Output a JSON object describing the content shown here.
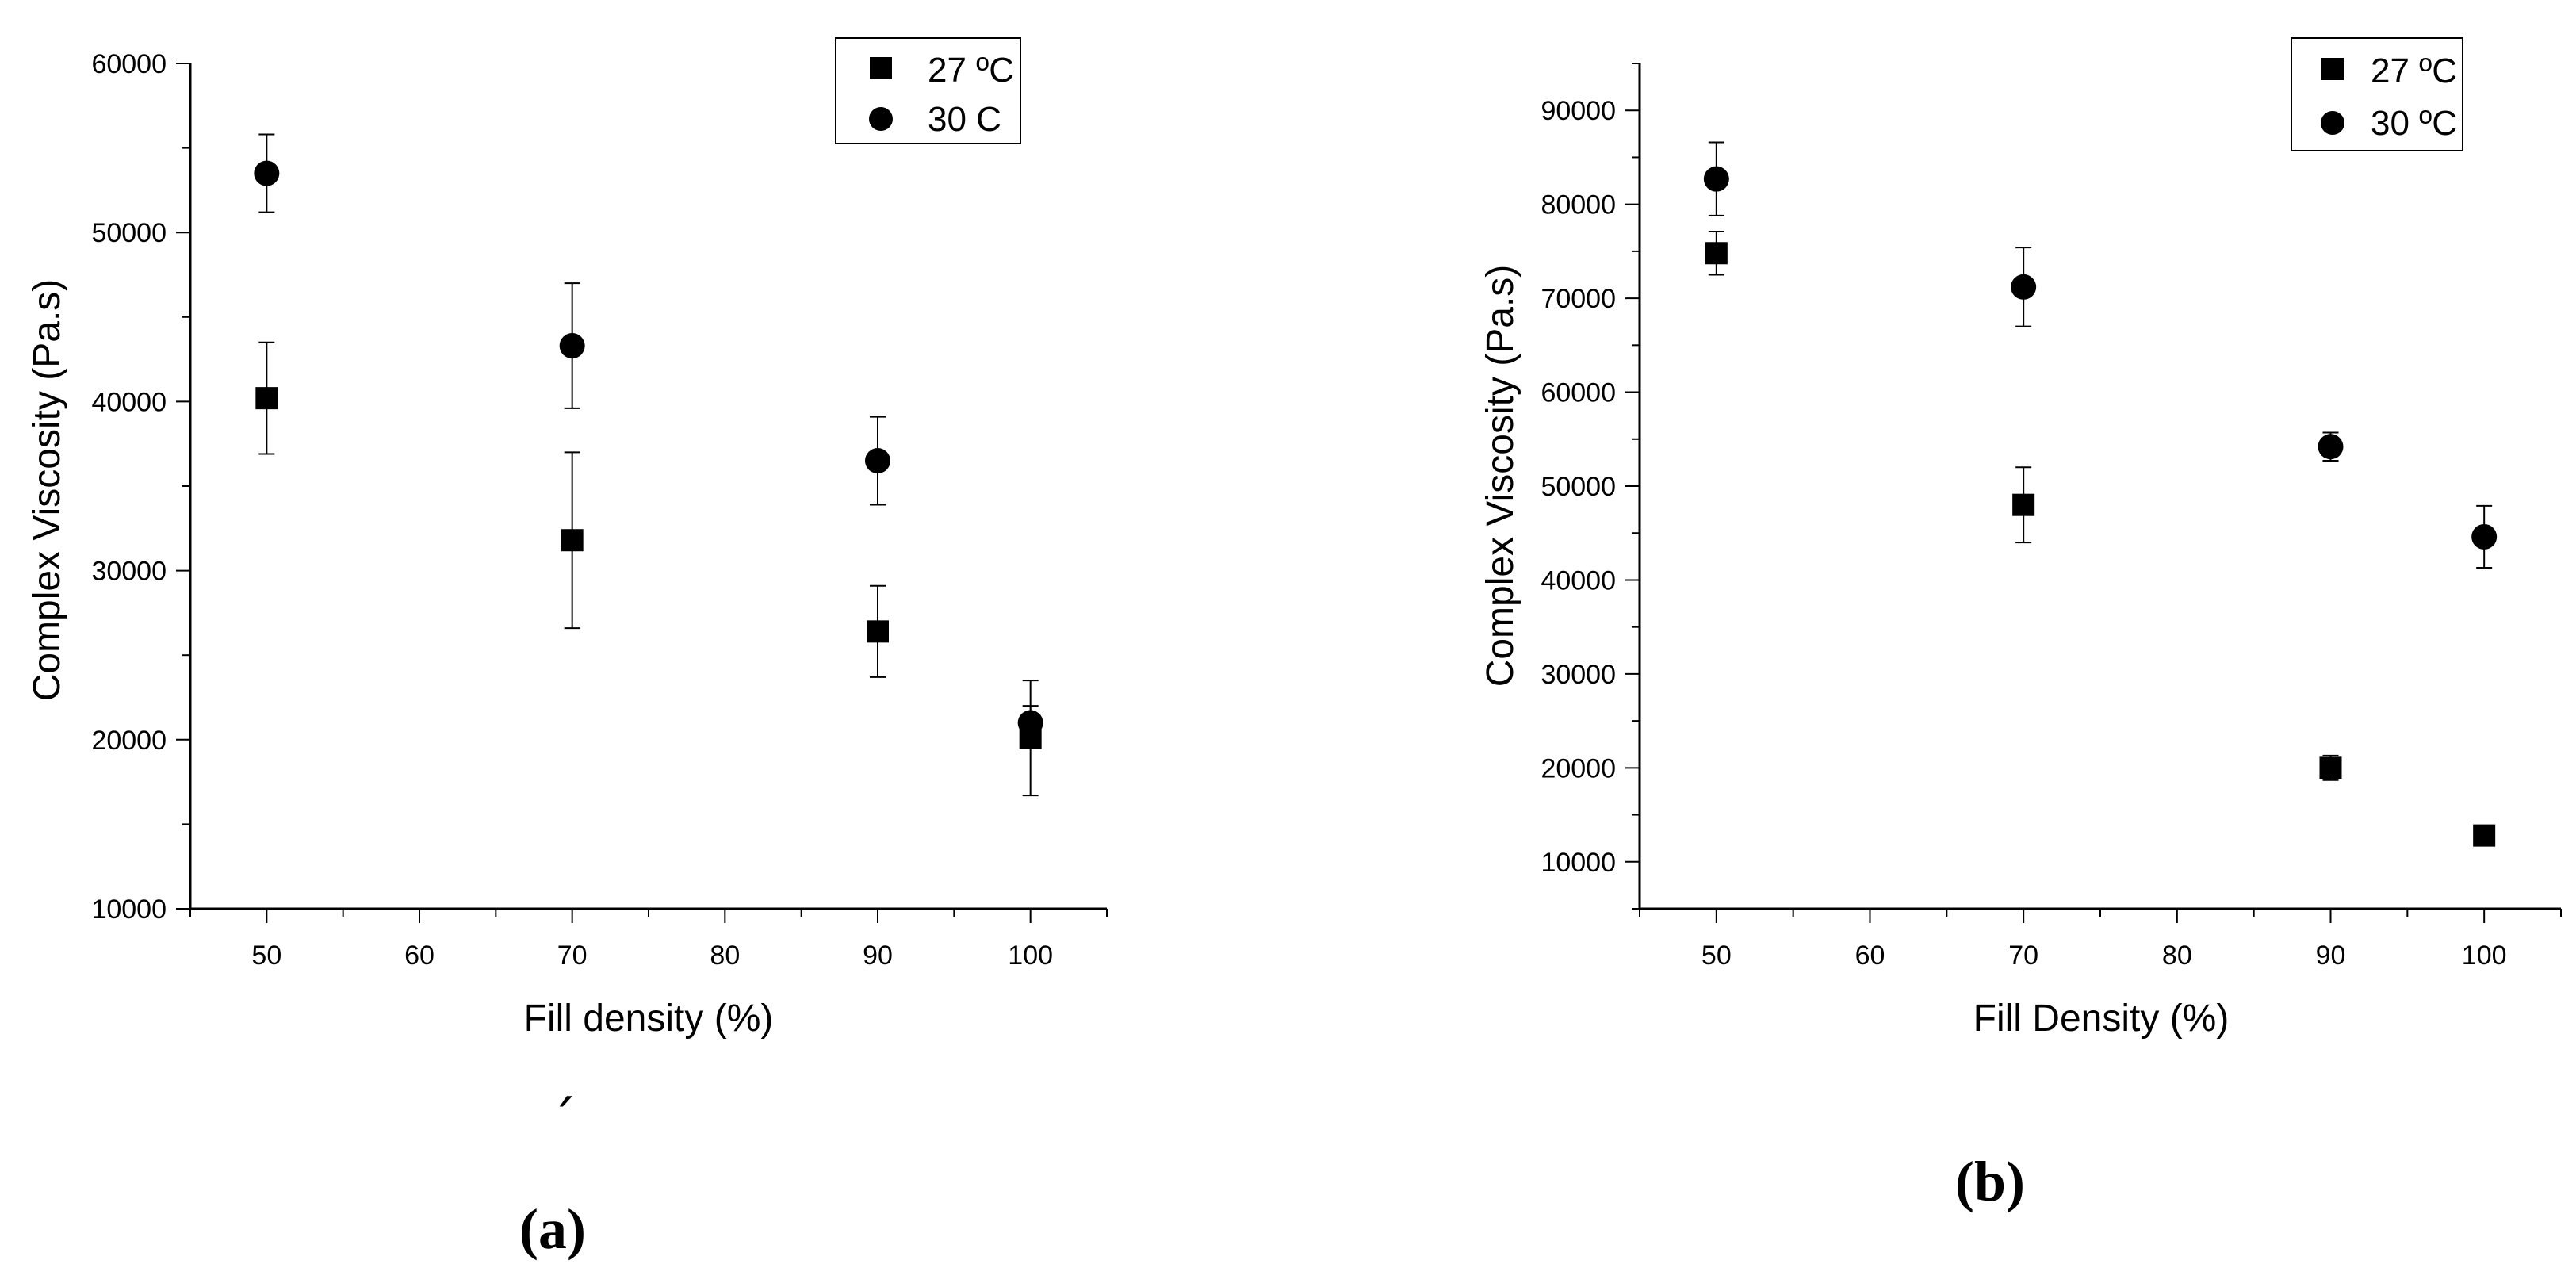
{
  "chart_data": [
    {
      "type": "scatter",
      "panel_label": "(a)",
      "xlabel": "Fill density (%)",
      "ylabel": "Complex Viscosity (Pa.s)",
      "xlim": [
        45,
        105
      ],
      "ylim": [
        10000,
        60000
      ],
      "x_ticks": [
        50,
        60,
        70,
        80,
        90,
        100
      ],
      "y_ticks": [
        10000,
        20000,
        30000,
        40000,
        50000,
        60000
      ],
      "legend_position": "top-right",
      "series": [
        {
          "name": "27 ºC",
          "marker": "square",
          "x": [
            50,
            70,
            90,
            100
          ],
          "y": [
            40200,
            31800,
            26400,
            20100
          ],
          "error": [
            3300,
            5200,
            2700,
            3400
          ]
        },
        {
          "name": "30 C",
          "marker": "circle",
          "x": [
            50,
            70,
            90,
            100
          ],
          "y": [
            53500,
            43300,
            36500,
            21000
          ],
          "error": [
            2300,
            3700,
            2600,
            1000
          ]
        }
      ]
    },
    {
      "type": "scatter",
      "panel_label": "(b)",
      "xlabel": "Fill Density (%)",
      "ylabel": "Complex Viscosity (Pa.s)",
      "xlim": [
        45,
        105
      ],
      "ylim": [
        5000,
        95000
      ],
      "x_ticks": [
        50,
        60,
        70,
        80,
        90,
        100
      ],
      "y_ticks": [
        10000,
        20000,
        30000,
        40000,
        50000,
        60000,
        70000,
        80000,
        90000
      ],
      "legend_position": "top-right",
      "series": [
        {
          "name": "27 ºC",
          "marker": "square",
          "x": [
            50,
            70,
            90,
            100
          ],
          "y": [
            74800,
            48000,
            20000,
            12800
          ],
          "error": [
            2300,
            4000,
            1300,
            600
          ]
        },
        {
          "name": "30 ºC",
          "marker": "circle",
          "x": [
            50,
            70,
            90,
            100
          ],
          "y": [
            82700,
            71200,
            54200,
            44600
          ],
          "error": [
            3900,
            4200,
            1500,
            3300
          ]
        }
      ]
    }
  ],
  "stray_mark": "´"
}
